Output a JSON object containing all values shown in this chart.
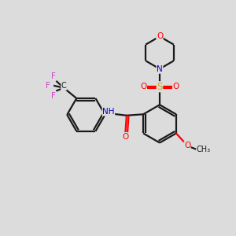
{
  "background_color": "#dcdcdc",
  "bond_color": "#1a1a1a",
  "atom_colors": {
    "O": "#ff0000",
    "N": "#0000cc",
    "S": "#ccaa00",
    "F": "#cc44cc",
    "H": "#777777",
    "C": "#1a1a1a"
  },
  "lw": 1.6
}
